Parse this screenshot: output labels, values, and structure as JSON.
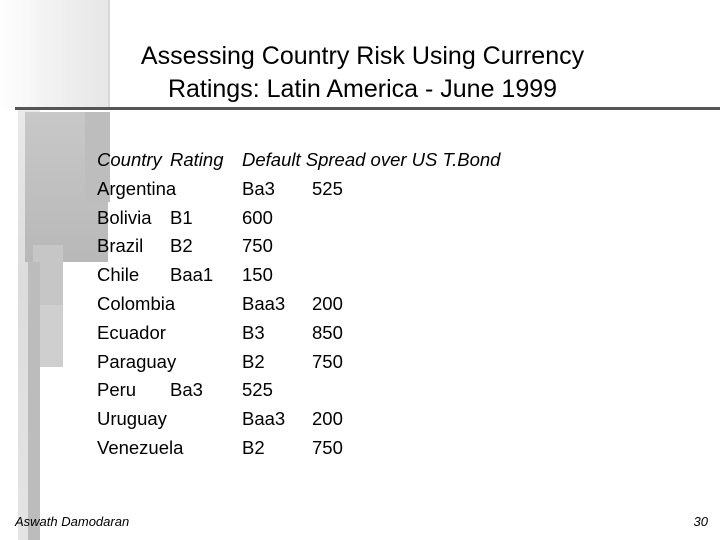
{
  "slide": {
    "title_line1": "Assessing Country Risk Using Currency",
    "title_line2": "Ratings: Latin America - June 1999",
    "header": {
      "country": "Country",
      "rating": "Rating",
      "spread": "Default Spread over US T.Bond"
    },
    "rows": [
      {
        "country": "Argentina",
        "rating": "Ba3",
        "spread": "525"
      },
      {
        "country": "Bolivia",
        "rating": "B1",
        "spread": "600"
      },
      {
        "country": "Brazil",
        "rating": "B2",
        "spread": "750"
      },
      {
        "country": "Chile",
        "rating": "Baa1",
        "spread": "150"
      },
      {
        "country": "Colombia",
        "rating": "Baa3",
        "spread": "200"
      },
      {
        "country": "Ecuador",
        "rating": "B3",
        "spread": "850"
      },
      {
        "country": "Paraguay",
        "rating": "B2",
        "spread": "750"
      },
      {
        "country": "Peru",
        "rating": "Ba3",
        "spread": "525"
      },
      {
        "country": "Uruguay",
        "rating": "Baa3",
        "spread": "200"
      },
      {
        "country": "Venezuela",
        "rating": "B2",
        "spread": "750"
      }
    ],
    "author": "Aswath Damodaran",
    "page_number": "30"
  }
}
